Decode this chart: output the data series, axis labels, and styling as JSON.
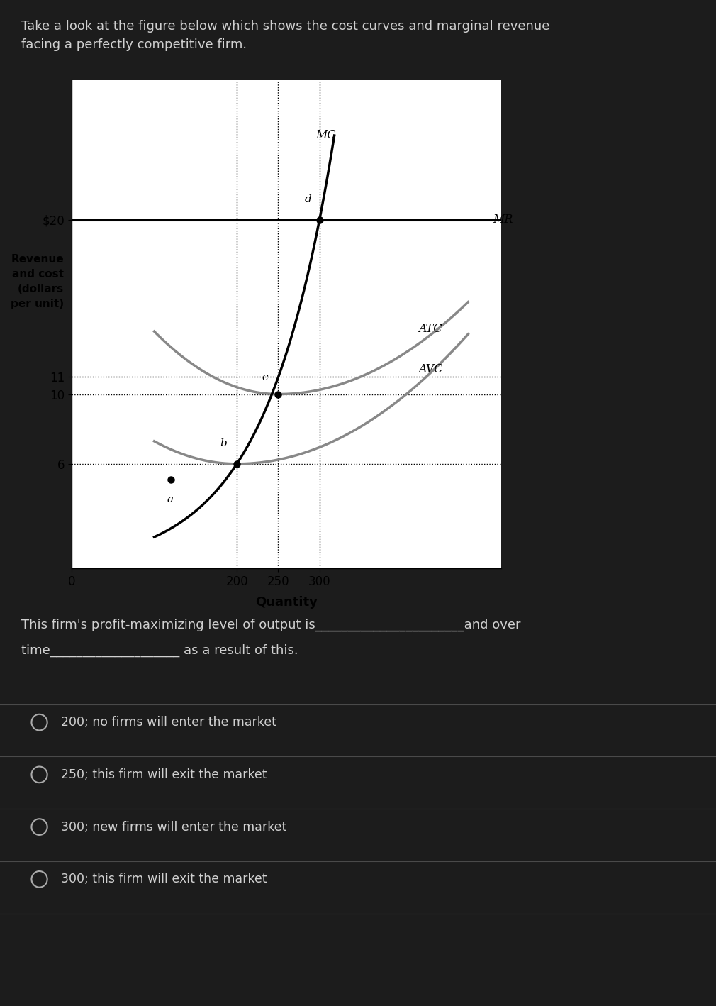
{
  "title_line1": "Take a look at the figure below which shows the cost curves and marginal revenue",
  "title_line2": "facing a perfectly competitive firm.",
  "ylabel": "Revenue\nand cost\n(dollars\nper unit)",
  "xlabel": "Quantity",
  "mr_value": 20,
  "y_ticks": [
    6,
    10,
    11,
    20
  ],
  "y_tick_labels": [
    "6",
    "10",
    "11",
    "$20"
  ],
  "x_ticks": [
    200,
    250,
    300
  ],
  "xlim": [
    50,
    520
  ],
  "ylim": [
    0,
    28
  ],
  "bg_color": "#1c1c1c",
  "chart_bg": "#ffffff",
  "text_color": "#d0d0d0",
  "question_text1": "This firm's profit-maximizing level of output is_______________________and over",
  "question_text2": "time____________________ as a result of this.",
  "options": [
    "200; no firms will enter the market",
    "250; this firm will exit the market",
    "300; new firms will enter the market",
    "300; this firm will exit the market"
  ],
  "point_a": [
    120,
    5.1
  ],
  "point_b": [
    200,
    6.0
  ],
  "point_c": [
    250,
    10.0
  ],
  "point_d": [
    300,
    20.0
  ],
  "avc_min_q": 200,
  "avc_min_v": 6.0,
  "atc_min_q": 250,
  "atc_min_v": 10.0
}
